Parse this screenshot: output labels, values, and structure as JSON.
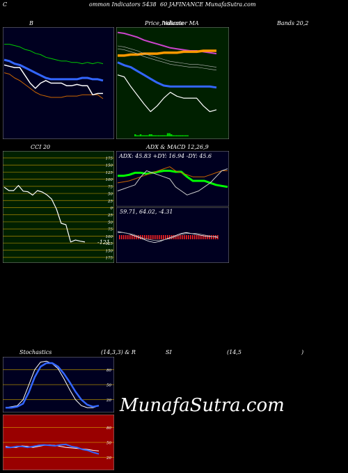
{
  "header": {
    "left": "C",
    "title_mid": "ommon  Indicators 5438",
    "title_right": "60  JAFINANCE MunafaSutra.com"
  },
  "row1_labels": {
    "bands_a": "B",
    "price": "Price,  Volume",
    "ma": "Indicator  MA",
    "bands_b": "Bands 20,2"
  },
  "row2_labels": {
    "cci": "CCI 20",
    "adx_macd": "ADX  & MACD 12,26,9",
    "adx_values": "ADX: 45.83  +DY: 16.94  -DY: 45.6",
    "macd_values": "59.71,  64.02,  -4.31",
    "cci_value": "-121"
  },
  "row3_labels": {
    "stoch": "Stochastics",
    "stoch_params": "(14,3,3) & R",
    "rsi": "SI",
    "rsi_params": "(14,5",
    "rsi_close": ")"
  },
  "watermark": "MunafaSutra.com",
  "colors": {
    "bands_bg": "#000020",
    "price_bg": "#002000",
    "cci_bg": "#002000",
    "adx_bg": "#000020",
    "stoch_bg": "#000020",
    "rsi_bg": "#990000"
  },
  "chart_data": [
    {
      "type": "line",
      "panel": "bollinger-bands",
      "series": [
        {
          "name": "upper",
          "color": "#00cc00",
          "values": [
            70,
            70,
            69,
            68,
            66,
            65,
            63,
            62,
            60,
            59,
            58,
            57,
            57,
            56,
            56,
            55,
            56,
            55,
            56,
            55
          ]
        },
        {
          "name": "middle",
          "color": "#3366ff",
          "values": [
            58,
            57,
            55,
            54,
            52,
            50,
            48,
            46,
            44,
            43,
            43,
            43,
            43,
            43,
            43,
            44,
            44,
            43,
            43,
            42
          ]
        },
        {
          "name": "lower",
          "color": "#cc6600",
          "values": [
            48,
            47,
            44,
            42,
            39,
            36,
            33,
            31,
            30,
            29,
            29,
            29,
            30,
            30,
            30,
            31,
            31,
            31,
            31,
            28
          ]
        },
        {
          "name": "price",
          "color": "#ffffff",
          "values": [
            54,
            53,
            52,
            52,
            46,
            40,
            36,
            40,
            42,
            40,
            40,
            40,
            38,
            38,
            39,
            38,
            38,
            31,
            32,
            32
          ]
        }
      ]
    },
    {
      "type": "line",
      "panel": "price-volume-ma",
      "series": [
        {
          "name": "ma-short",
          "color": "#cc44cc",
          "values": [
            96,
            95,
            93,
            91,
            88,
            86,
            84,
            82,
            80,
            79,
            78,
            77,
            77,
            76,
            75,
            74
          ]
        },
        {
          "name": "ma-mid",
          "color": "#ff9900",
          "values": [
            72,
            72,
            73,
            73,
            74,
            74,
            74,
            75,
            75,
            75,
            76,
            76,
            76,
            77,
            77,
            77
          ]
        },
        {
          "name": "ma-long",
          "color": "#3366ff",
          "values": [
            65,
            62,
            60,
            56,
            52,
            48,
            44,
            41,
            40,
            40,
            40,
            40,
            40,
            40,
            40,
            39
          ]
        },
        {
          "name": "price",
          "color": "#ffffff",
          "values": [
            52,
            50,
            40,
            31,
            22,
            14,
            20,
            28,
            34,
            30,
            28,
            28,
            28,
            20,
            14,
            16
          ]
        }
      ],
      "volume": [
        2,
        1,
        1,
        2,
        1,
        1,
        1,
        1,
        2,
        2,
        1,
        1,
        1,
        1,
        1,
        1,
        1,
        1,
        3,
        3,
        2,
        1,
        1,
        1,
        1,
        1,
        1,
        1,
        1,
        1
      ]
    },
    {
      "type": "line",
      "panel": "cci",
      "levels": [
        175,
        150,
        125,
        100,
        75,
        50,
        25,
        0,
        -25,
        -50,
        -75,
        -100,
        -125,
        -150,
        -175
      ],
      "series": [
        {
          "name": "cci",
          "color": "#ffffff",
          "values": [
            72,
            60,
            60,
            78,
            58,
            56,
            44,
            60,
            55,
            45,
            30,
            -5,
            -55,
            -60,
            -121,
            -114,
            -118,
            -121
          ]
        }
      ],
      "last_value": -121
    },
    {
      "type": "line",
      "panel": "adx",
      "series": [
        {
          "name": "adx",
          "color": "#00ff00",
          "values": [
            25,
            25,
            26,
            28,
            28,
            27,
            28,
            29,
            30,
            30,
            29,
            29,
            24,
            20,
            20,
            20,
            18,
            16,
            15,
            14
          ]
        },
        {
          "name": "+di",
          "color": "#cc6600",
          "values": [
            18,
            19,
            20,
            22,
            24,
            26,
            28,
            30,
            32,
            34,
            30,
            28,
            26,
            24,
            24,
            24,
            26,
            28,
            30,
            30
          ]
        },
        {
          "name": "-di",
          "color": "#cccccc",
          "values": [
            10,
            12,
            14,
            16,
            24,
            30,
            28,
            26,
            24,
            22,
            14,
            10,
            6,
            8,
            10,
            14,
            18,
            24,
            30,
            32
          ]
        }
      ],
      "adx": 45.83,
      "plus_di": 16.94,
      "minus_di": 45.6
    },
    {
      "type": "line",
      "panel": "macd",
      "series": [
        {
          "name": "macd",
          "color": "#ffffff",
          "values": [
            2,
            1,
            0,
            -2,
            -4,
            -6,
            -8,
            -9,
            -8,
            -6,
            -4,
            -2,
            0,
            1,
            0,
            -1,
            -2,
            -3,
            -3,
            -4
          ]
        },
        {
          "name": "signal",
          "color": "#aaaaaa",
          "values": [
            1,
            1,
            0,
            -1,
            -3,
            -5,
            -6,
            -7,
            -7,
            -6,
            -5,
            -3,
            -1,
            0,
            0,
            0,
            -1,
            -2,
            -3,
            -3
          ]
        }
      ],
      "macd": 59.71,
      "signal": 64.02,
      "histogram": -4.31
    },
    {
      "type": "line",
      "panel": "stochastics",
      "levels": [
        80,
        50,
        20
      ],
      "series": [
        {
          "name": "%k",
          "color": "#ffffff",
          "values": [
            4,
            6,
            8,
            20,
            50,
            80,
            95,
            97,
            92,
            82,
            62,
            40,
            20,
            8,
            4,
            4,
            8
          ]
        },
        {
          "name": "%d",
          "color": "#3366ff",
          "values": [
            4,
            4,
            6,
            12,
            35,
            65,
            86,
            93,
            93,
            86,
            72,
            55,
            36,
            20,
            10,
            6,
            8
          ]
        }
      ]
    },
    {
      "type": "line",
      "panel": "rsi",
      "levels": [
        80,
        50,
        20
      ],
      "series": [
        {
          "name": "rsi",
          "color": "#ffffff",
          "values": [
            42,
            40,
            40,
            43,
            42,
            40,
            42,
            44,
            45,
            44,
            42,
            40,
            39,
            38,
            37,
            36,
            34,
            33
          ]
        },
        {
          "name": "mrsi",
          "color": "#3366ff",
          "values": [
            40,
            40,
            42,
            42,
            40,
            42,
            44,
            45,
            44,
            43,
            45,
            46,
            42,
            40,
            36,
            34,
            30,
            27
          ]
        }
      ]
    }
  ]
}
